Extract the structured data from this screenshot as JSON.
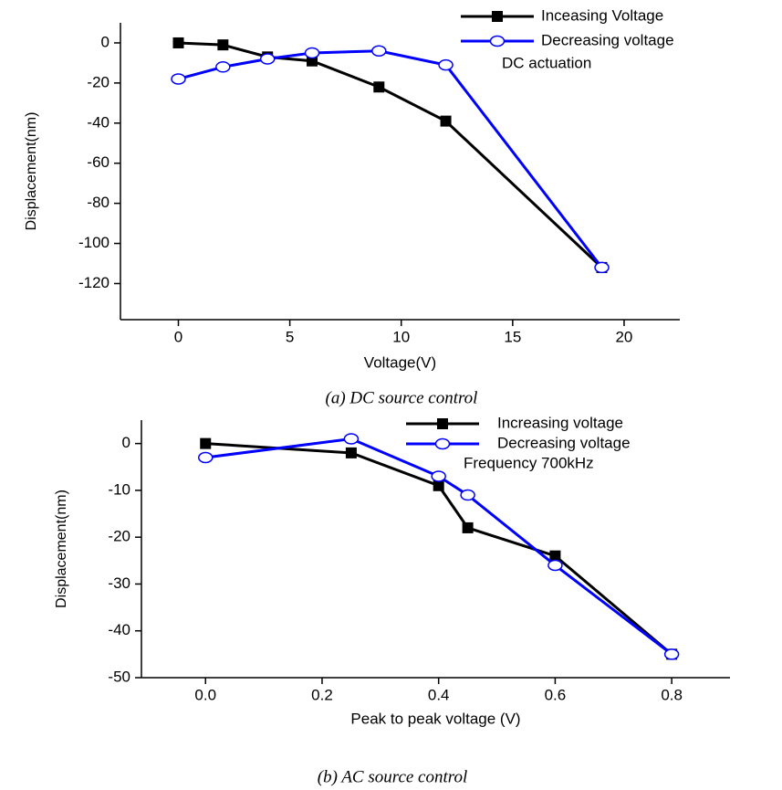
{
  "chart_data": [
    {
      "type": "line",
      "x_label": "Voltage(V)",
      "y_label": "Displacement(nm)",
      "caption": "(a) DC source control",
      "annotation": "DC actuation",
      "xlim": [
        -2.6,
        22.5
      ],
      "xticks": [
        0,
        5,
        10,
        15,
        20
      ],
      "ylim": [
        -138,
        10
      ],
      "yticks": [
        0,
        -20,
        -40,
        -60,
        -80,
        -100,
        -120
      ],
      "series": [
        {
          "name": "Inceasing Voltage",
          "color": "#000000",
          "marker": "square",
          "x": [
            0,
            2,
            4,
            6,
            9,
            12,
            19
          ],
          "values": [
            0,
            -1,
            -7,
            -9,
            -22,
            -39,
            -112
          ]
        },
        {
          "name": "Decreasing voltage",
          "color": "#0000ff",
          "marker": "circle",
          "x": [
            0,
            2,
            4,
            6,
            9,
            12,
            19
          ],
          "values": [
            -18,
            -12,
            -8,
            -5,
            -4,
            -11,
            -112
          ]
        }
      ]
    },
    {
      "type": "line",
      "x_label": "Peak to peak voltage (V)",
      "y_label": "Displacement(nm)",
      "caption": "(b) AC source control",
      "annotation": "Frequency 700kHz",
      "xlim": [
        -0.11,
        0.9
      ],
      "xticks": [
        {
          "value": 0,
          "label": "0.0"
        },
        0.2,
        0.4,
        0.6,
        0.8
      ],
      "ylim": [
        -50,
        5
      ],
      "yticks": [
        0,
        -10,
        -20,
        -30,
        -40,
        -50
      ],
      "series": [
        {
          "name": "Increasing voltage",
          "color": "#000000",
          "marker": "square",
          "x": [
            0,
            0.25,
            0.4,
            0.45,
            0.6,
            0.8
          ],
          "values": [
            0,
            -2,
            -9,
            -18,
            -24,
            -45
          ]
        },
        {
          "name": "Decreasing voltage",
          "color": "#0000ff",
          "marker": "circle",
          "x": [
            0,
            0.25,
            0.4,
            0.45,
            0.6,
            0.8
          ],
          "values": [
            -3,
            1,
            -7,
            -11,
            -26,
            -45
          ]
        }
      ]
    }
  ]
}
